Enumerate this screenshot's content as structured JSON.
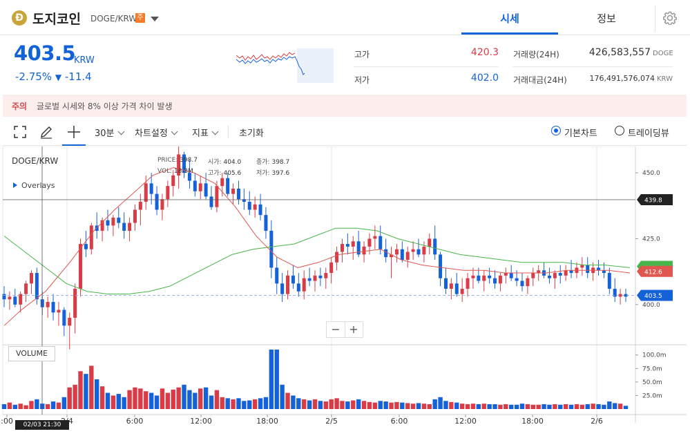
{
  "header": {
    "coin_logo_char": "Ð",
    "coin_name": "도지코인",
    "pair": "DOGE/KRW",
    "warning_badge": "주",
    "tabs": [
      {
        "label": "시세",
        "active": true
      },
      {
        "label": "정보",
        "active": false
      }
    ],
    "settings_icon": "gear-icon"
  },
  "ticker": {
    "price": "403.5",
    "currency": "KRW",
    "change_pct": "-2.75%",
    "change_arrow": "▼",
    "change_abs": "-11.4",
    "high_label": "고가",
    "high_value": "420.3",
    "low_label": "저가",
    "low_value": "402.0",
    "volume_label": "거래량(24H)",
    "volume_value": "426,583,557",
    "volume_unit": "DOGE",
    "amount_label": "거래대금(24H)",
    "amount_value": "176,491,576,074",
    "amount_unit": "KRW"
  },
  "notice": {
    "tag": "주의",
    "text": "글로벌 시세와 8% 이상 가격 차이 발생"
  },
  "toolbar": {
    "icons": [
      "fullscreen-icon",
      "pencil-icon",
      "crosshair-icon"
    ],
    "interval": "30분",
    "chart_settings": "차트설정",
    "indicators": "지표",
    "reset": "초기화",
    "view_options": [
      {
        "label": "기본차트",
        "selected": true
      },
      {
        "label": "트레이딩뷰",
        "selected": false
      }
    ]
  },
  "chart_data": {
    "type": "candlestick",
    "symbol": "DOGE/KRW",
    "overlays_label": "Overlays",
    "ohlc_readout": {
      "price_label": "PRICE:",
      "price": "398.7",
      "open_label": "시가:",
      "open": "404.0",
      "close_label": "종가:",
      "close": "398.7",
      "vol_label": "VOL:",
      "vol": "18.3M",
      "high_label": "고가:",
      "high": "405.6",
      "low_label": "저가:",
      "low": "397.6"
    },
    "price_axis": {
      "ticks": [
        "450.0",
        "425.0",
        "400.0"
      ],
      "min": 385,
      "max": 460
    },
    "price_labels": {
      "crosshair": "439.8",
      "ma": "412.6",
      "current": "403.5"
    },
    "volume_label": "VOLUME",
    "volume_axis": {
      "ticks": [
        "100.0m",
        "75.0m",
        "50.0m",
        "25.0m"
      ],
      "max": 115
    },
    "time_labels": [
      ":00",
      "2/4",
      "6:00",
      "12:00",
      "18:00",
      "2/5",
      "6:00",
      "12:00",
      "18:00",
      "2/6"
    ],
    "crosshair_time": "02/03 21:30",
    "colors": {
      "up": "#d93c46",
      "down": "#1561d8",
      "ma_short": "#e0574f",
      "ma_long": "#47b649"
    },
    "candles": [
      [
        404,
        407,
        399,
        402,
        9
      ],
      [
        402,
        405,
        398,
        403,
        12
      ],
      [
        403,
        406,
        399,
        400,
        8
      ],
      [
        400,
        405,
        397,
        404,
        10
      ],
      [
        404,
        409,
        401,
        408,
        7
      ],
      [
        408,
        413,
        404,
        412,
        15
      ],
      [
        412,
        414,
        400,
        402,
        18
      ],
      [
        402,
        405,
        396,
        399,
        10
      ],
      [
        399,
        403,
        395,
        401,
        9
      ],
      [
        401,
        404,
        394,
        397,
        14
      ],
      [
        397,
        401,
        392,
        398,
        12
      ],
      [
        398,
        399,
        388,
        392,
        22
      ],
      [
        392,
        397,
        383,
        395,
        40
      ],
      [
        395,
        408,
        389,
        406,
        45
      ],
      [
        406,
        425,
        403,
        423,
        70
      ],
      [
        423,
        428,
        418,
        421,
        65
      ],
      [
        421,
        431,
        419,
        430,
        80
      ],
      [
        430,
        435,
        425,
        428,
        55
      ],
      [
        428,
        433,
        424,
        432,
        42
      ],
      [
        432,
        436,
        428,
        430,
        30
      ],
      [
        430,
        434,
        426,
        433,
        25
      ],
      [
        433,
        437,
        429,
        431,
        28
      ],
      [
        431,
        435,
        425,
        428,
        22
      ],
      [
        428,
        433,
        424,
        431,
        35
      ],
      [
        431,
        438,
        428,
        436,
        40
      ],
      [
        436,
        442,
        430,
        439,
        38
      ],
      [
        439,
        449,
        436,
        446,
        33
      ],
      [
        446,
        450,
        438,
        442,
        30
      ],
      [
        442,
        445,
        434,
        436,
        25
      ],
      [
        436,
        442,
        432,
        440,
        38
      ],
      [
        440,
        447,
        437,
        445,
        30
      ],
      [
        445,
        451,
        441,
        449,
        36
      ],
      [
        449,
        460,
        444,
        457,
        40
      ],
      [
        457,
        458,
        448,
        450,
        45
      ],
      [
        450,
        455,
        444,
        447,
        35
      ],
      [
        447,
        450,
        441,
        443,
        30
      ],
      [
        443,
        449,
        440,
        446,
        38
      ],
      [
        446,
        450,
        440,
        441,
        40
      ],
      [
        441,
        445,
        436,
        437,
        25
      ],
      [
        437,
        447,
        435,
        445,
        35
      ],
      [
        445,
        450,
        441,
        448,
        22
      ],
      [
        448,
        450,
        441,
        442,
        20
      ],
      [
        442,
        446,
        438,
        444,
        18
      ],
      [
        444,
        447,
        438,
        440,
        20
      ],
      [
        440,
        444,
        436,
        439,
        15
      ],
      [
        439,
        443,
        434,
        436,
        16
      ],
      [
        436,
        441,
        433,
        438,
        18
      ],
      [
        438,
        442,
        432,
        434,
        20
      ],
      [
        434,
        437,
        425,
        428,
        22
      ],
      [
        428,
        432,
        410,
        414,
        110
      ],
      [
        414,
        418,
        404,
        408,
        110
      ],
      [
        408,
        412,
        401,
        404,
        45
      ],
      [
        404,
        413,
        402,
        411,
        30
      ],
      [
        411,
        415,
        406,
        408,
        25
      ],
      [
        408,
        412,
        403,
        405,
        20
      ],
      [
        405,
        413,
        402,
        410,
        18
      ],
      [
        410,
        414,
        407,
        409,
        16
      ],
      [
        409,
        413,
        405,
        411,
        18
      ],
      [
        411,
        414,
        407,
        410,
        15
      ],
      [
        410,
        414,
        406,
        412,
        14
      ],
      [
        412,
        418,
        408,
        416,
        18
      ],
      [
        416,
        422,
        413,
        420,
        20
      ],
      [
        420,
        425,
        416,
        423,
        15
      ],
      [
        423,
        427,
        419,
        422,
        14
      ],
      [
        422,
        426,
        417,
        424,
        16
      ],
      [
        424,
        428,
        418,
        419,
        18
      ],
      [
        419,
        424,
        416,
        422,
        15
      ],
      [
        422,
        427,
        419,
        425,
        13
      ],
      [
        425,
        430,
        421,
        426,
        12
      ],
      [
        426,
        430,
        419,
        421,
        15
      ],
      [
        421,
        425,
        416,
        418,
        14
      ],
      [
        418,
        422,
        410,
        419,
        12
      ],
      [
        419,
        423,
        416,
        421,
        13
      ],
      [
        421,
        424,
        416,
        417,
        12
      ],
      [
        417,
        422,
        414,
        420,
        11
      ],
      [
        420,
        424,
        417,
        421,
        10
      ],
      [
        421,
        425,
        418,
        419,
        11
      ],
      [
        419,
        424,
        416,
        422,
        10
      ],
      [
        422,
        427,
        419,
        425,
        9
      ],
      [
        425,
        430,
        417,
        419,
        18
      ],
      [
        419,
        420,
        407,
        410,
        22
      ],
      [
        410,
        414,
        404,
        406,
        15
      ],
      [
        406,
        410,
        402,
        408,
        13
      ],
      [
        408,
        412,
        403,
        404,
        12
      ],
      [
        404,
        410,
        401,
        406,
        10
      ],
      [
        406,
        412,
        403,
        410,
        9
      ],
      [
        410,
        414,
        406,
        411,
        10
      ],
      [
        411,
        414,
        408,
        409,
        9
      ],
      [
        409,
        413,
        405,
        411,
        10
      ],
      [
        411,
        414,
        408,
        410,
        9
      ],
      [
        410,
        413,
        406,
        408,
        9
      ],
      [
        408,
        412,
        405,
        411,
        8
      ],
      [
        411,
        414,
        408,
        412,
        9
      ],
      [
        412,
        415,
        409,
        410,
        8
      ],
      [
        410,
        413,
        407,
        409,
        8
      ],
      [
        409,
        412,
        405,
        407,
        10
      ],
      [
        407,
        411,
        404,
        410,
        9
      ],
      [
        410,
        414,
        407,
        412,
        8
      ],
      [
        412,
        415,
        409,
        413,
        8
      ],
      [
        413,
        416,
        410,
        411,
        9
      ],
      [
        411,
        414,
        408,
        410,
        8
      ],
      [
        410,
        413,
        406,
        412,
        9
      ],
      [
        412,
        415,
        408,
        411,
        8
      ],
      [
        411,
        415,
        409,
        413,
        9
      ],
      [
        413,
        417,
        410,
        412,
        8
      ],
      [
        412,
        416,
        410,
        414,
        9
      ],
      [
        414,
        418,
        411,
        415,
        8
      ],
      [
        415,
        418,
        410,
        412,
        9
      ],
      [
        412,
        416,
        409,
        414,
        10
      ],
      [
        414,
        417,
        411,
        413,
        9
      ],
      [
        413,
        416,
        410,
        412,
        8
      ],
      [
        412,
        414,
        404,
        406,
        14
      ],
      [
        406,
        410,
        401,
        403,
        11
      ],
      [
        403,
        406,
        400,
        404,
        10
      ],
      [
        404,
        406,
        401,
        403,
        6
      ]
    ],
    "ma_short": [
      [
        0,
        392
      ],
      [
        25,
        398
      ],
      [
        60,
        405
      ],
      [
        95,
        416
      ],
      [
        130,
        428
      ],
      [
        160,
        436
      ],
      [
        190,
        443
      ],
      [
        215,
        449
      ],
      [
        245,
        452
      ],
      [
        275,
        450
      ],
      [
        305,
        446
      ],
      [
        335,
        437
      ],
      [
        365,
        426
      ],
      [
        395,
        418
      ],
      [
        425,
        414
      ],
      [
        455,
        416
      ],
      [
        485,
        419
      ],
      [
        515,
        420
      ],
      [
        545,
        421
      ],
      [
        575,
        417
      ],
      [
        605,
        415
      ],
      [
        635,
        414
      ],
      [
        665,
        413
      ],
      [
        695,
        413
      ],
      [
        725,
        412
      ],
      [
        755,
        412
      ],
      [
        785,
        412
      ],
      [
        815,
        413
      ],
      [
        845,
        413
      ],
      [
        875,
        413
      ],
      [
        906,
        412
      ]
    ],
    "ma_long": [
      [
        0,
        426
      ],
      [
        30,
        420
      ],
      [
        60,
        414
      ],
      [
        90,
        408
      ],
      [
        120,
        405
      ],
      [
        150,
        404
      ],
      [
        180,
        404
      ],
      [
        210,
        405
      ],
      [
        240,
        407
      ],
      [
        270,
        411
      ],
      [
        300,
        415
      ],
      [
        330,
        419
      ],
      [
        360,
        421
      ],
      [
        390,
        422
      ],
      [
        420,
        423
      ],
      [
        450,
        426
      ],
      [
        480,
        429
      ],
      [
        510,
        429
      ],
      [
        540,
        428
      ],
      [
        570,
        425
      ],
      [
        600,
        423
      ],
      [
        630,
        421
      ],
      [
        660,
        419
      ],
      [
        690,
        418
      ],
      [
        720,
        417
      ],
      [
        750,
        416
      ],
      [
        780,
        416
      ],
      [
        810,
        416
      ],
      [
        840,
        415
      ],
      [
        870,
        415
      ],
      [
        906,
        414
      ]
    ]
  }
}
